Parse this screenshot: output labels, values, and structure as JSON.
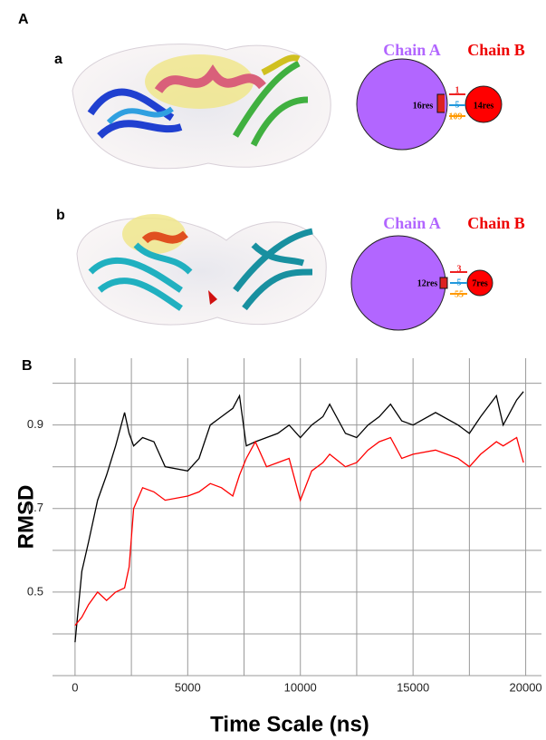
{
  "panels": {
    "A": {
      "label": "A",
      "a": {
        "label": "a",
        "chain_a": "Chain A",
        "chain_b": "Chain B",
        "res_a": "16res",
        "res_b": "14res",
        "links": [
          "1",
          "5",
          "109"
        ]
      },
      "b": {
        "label": "b",
        "chain_a": "Chain A",
        "chain_b": "Chain B",
        "res_a": "12res",
        "res_b": "7res",
        "links": [
          "3",
          "5",
          "55"
        ]
      }
    },
    "B": {
      "label": "B"
    }
  },
  "chart_data": {
    "type": "line",
    "x_label": "Time Scale (ns)",
    "y_label": "RMSD",
    "x": [
      0,
      300,
      600,
      1000,
      1400,
      1800,
      2200,
      2400,
      2600,
      3000,
      3500,
      4000,
      5000,
      5500,
      6000,
      6500,
      7000,
      7300,
      7600,
      8000,
      8500,
      9000,
      9500,
      10000,
      10500,
      11000,
      11300,
      12000,
      12500,
      13000,
      13500,
      14000,
      14500,
      15000,
      16000,
      17000,
      17500,
      18000,
      18700,
      19000,
      19600,
      19900
    ],
    "series": [
      {
        "color": "#000000",
        "values": [
          0.38,
          0.55,
          0.62,
          0.72,
          0.78,
          0.85,
          0.93,
          0.88,
          0.85,
          0.87,
          0.86,
          0.8,
          0.79,
          0.82,
          0.9,
          0.92,
          0.94,
          0.97,
          0.85,
          0.86,
          0.87,
          0.88,
          0.9,
          0.87,
          0.9,
          0.92,
          0.95,
          0.88,
          0.87,
          0.9,
          0.92,
          0.95,
          0.91,
          0.9,
          0.93,
          0.9,
          0.88,
          0.92,
          0.97,
          0.9,
          0.96,
          0.98
        ]
      },
      {
        "color": "#ff0000",
        "values": [
          0.42,
          0.44,
          0.47,
          0.5,
          0.48,
          0.5,
          0.51,
          0.56,
          0.7,
          0.75,
          0.74,
          0.72,
          0.73,
          0.74,
          0.76,
          0.75,
          0.73,
          0.78,
          0.82,
          0.86,
          0.8,
          0.81,
          0.82,
          0.72,
          0.79,
          0.81,
          0.83,
          0.8,
          0.81,
          0.84,
          0.86,
          0.87,
          0.82,
          0.83,
          0.84,
          0.82,
          0.8,
          0.83,
          0.86,
          0.85,
          0.87,
          0.81
        ]
      }
    ],
    "xlim": [
      -1000,
      20700
    ],
    "ylim": [
      0.3,
      1.06
    ],
    "xticks": [
      0,
      5000,
      10000,
      15000,
      20000
    ],
    "yticks": [
      0.5,
      0.7,
      0.9
    ],
    "xgrid": [
      0,
      2500,
      5000,
      7500,
      10000,
      12500,
      15000,
      17500,
      20000
    ],
    "ygrid": [
      0.3,
      0.4,
      0.5,
      0.6,
      0.7,
      0.8,
      0.9,
      1.0
    ],
    "grid": true
  }
}
